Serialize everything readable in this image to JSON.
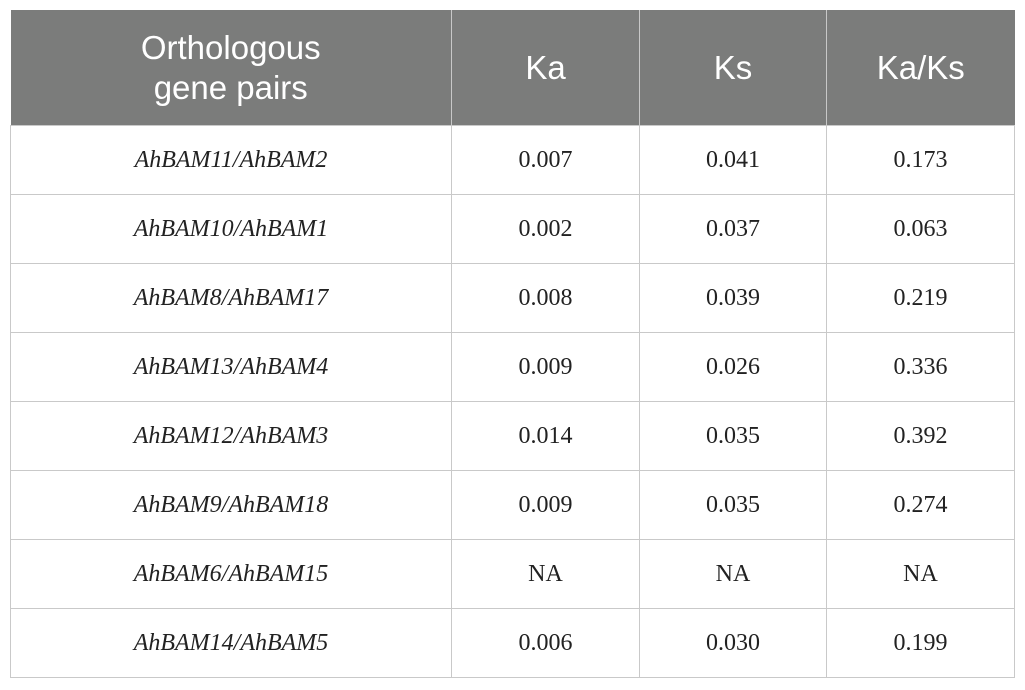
{
  "table": {
    "headers": {
      "pair_line1": "Orthologous",
      "pair_line2": "gene pairs",
      "ka": "Ka",
      "ks": "Ks",
      "kaks": "Ka/Ks"
    },
    "rows": [
      {
        "pair": "AhBAM11/AhBAM2",
        "ka": "0.007",
        "ks": "0.041",
        "kaks": "0.173"
      },
      {
        "pair": "AhBAM10/AhBAM1",
        "ka": "0.002",
        "ks": "0.037",
        "kaks": "0.063"
      },
      {
        "pair": "AhBAM8/AhBAM17",
        "ka": "0.008",
        "ks": "0.039",
        "kaks": "0.219"
      },
      {
        "pair": "AhBAM13/AhBAM4",
        "ka": "0.009",
        "ks": "0.026",
        "kaks": "0.336"
      },
      {
        "pair": "AhBAM12/AhBAM3",
        "ka": "0.014",
        "ks": "0.035",
        "kaks": "0.392"
      },
      {
        "pair": "AhBAM9/AhBAM18",
        "ka": "0.009",
        "ks": "0.035",
        "kaks": "0.274"
      },
      {
        "pair": "AhBAM6/AhBAM15",
        "ka": "NA",
        "ks": "NA",
        "kaks": "NA"
      },
      {
        "pair": "AhBAM14/AhBAM5",
        "ka": "0.006",
        "ks": "0.030",
        "kaks": "0.199"
      }
    ]
  }
}
